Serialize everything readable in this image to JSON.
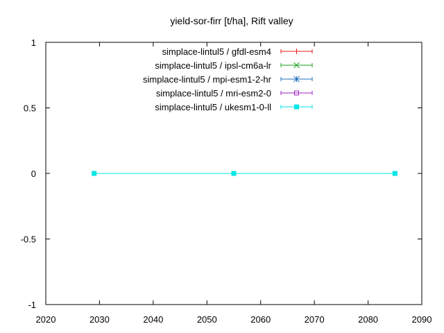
{
  "chart_data": {
    "type": "line",
    "title": "yield-sor-firr [t/ha], Rift valley",
    "xlabel": "",
    "ylabel": "",
    "xlim": [
      2020,
      2090
    ],
    "ylim": [
      -1,
      1
    ],
    "x_ticks": [
      "2020",
      "2030",
      "2040",
      "2050",
      "2060",
      "2070",
      "2080",
      "2090"
    ],
    "y_ticks": [
      "1",
      "0.5",
      "0",
      "-0.5",
      "-1"
    ],
    "grid": false,
    "legend_position": "top-right",
    "series": [
      {
        "name": "simplace-lintul5 / gfdl-esm4",
        "color": "#e41a1c",
        "marker": "plus",
        "points": []
      },
      {
        "name": "simplace-lintul5 / ipsl-cm6a-lr",
        "color": "#1a9e1a",
        "marker": "cross",
        "points": []
      },
      {
        "name": "simplace-lintul5 / mpi-esm1-2-hr",
        "color": "#1f6fbf",
        "marker": "star",
        "points": []
      },
      {
        "name": "simplace-lintul5 / mri-esm2-0",
        "color": "#a020c0",
        "marker": "open-square",
        "points": []
      },
      {
        "name": "simplace-lintul5 / ukesm1-0-ll",
        "color": "#00e5e5",
        "marker": "filled-square",
        "points": [
          {
            "x": 2029,
            "y": 0
          },
          {
            "x": 2055,
            "y": 0
          },
          {
            "x": 2085,
            "y": 0
          }
        ]
      }
    ]
  }
}
